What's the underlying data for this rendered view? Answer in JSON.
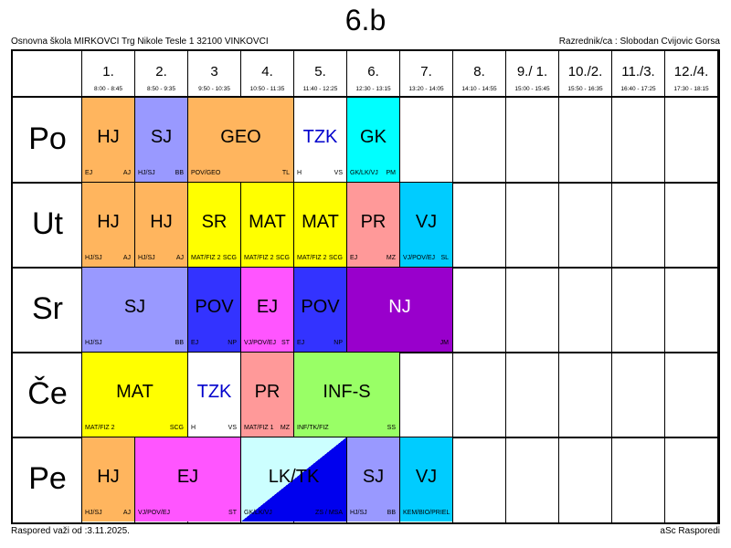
{
  "title": "6.b",
  "school": "Osnovna škola MIRKOVCI Trg Nikole Tesle 1 32100 VINKOVCI",
  "class_teacher": "Razrednik/ca : Slobodan Cvijovic Gorsa",
  "valid_from": "Raspored važi od :3.11.2025.",
  "software": "aSc Rasporedi",
  "periods": [
    {
      "num": "1.",
      "time": "8:00 - 8:45"
    },
    {
      "num": "2.",
      "time": "8:50 - 9:35"
    },
    {
      "num": "3",
      "time": "9:50 - 10:35"
    },
    {
      "num": "4.",
      "time": "10:50 - 11:35"
    },
    {
      "num": "5.",
      "time": "11:40 - 12:25"
    },
    {
      "num": "6.",
      "time": "12:30 - 13:15"
    },
    {
      "num": "7.",
      "time": "13:20 - 14:05"
    },
    {
      "num": "8.",
      "time": "14:10 - 14:55"
    },
    {
      "num": "9./ 1.",
      "time": "15:00 - 15:45"
    },
    {
      "num": "10./2.",
      "time": "15:50 - 16:35"
    },
    {
      "num": "11./3.",
      "time": "16:40 - 17:25"
    },
    {
      "num": "12./4.",
      "time": "17:30 - 18:15"
    }
  ],
  "days": [
    {
      "name": "Po",
      "lessons": [
        {
          "start": 1,
          "span": 1,
          "subject": "HJ",
          "group": "EJ",
          "teacher": "AJ",
          "color": "#FFB55E"
        },
        {
          "start": 2,
          "span": 1,
          "subject": "SJ",
          "group": "HJ/SJ",
          "teacher": "BB",
          "color": "#9999FF"
        },
        {
          "start": 3,
          "span": 2,
          "subject": "GEO",
          "group": "POV/GEO",
          "teacher": "TL",
          "color": "#FFB55E"
        },
        {
          "start": 5,
          "span": 1,
          "subject": "TZK",
          "group": "H",
          "teacher": "VS",
          "color": "#FFFFFF",
          "text_color": "#0000CC"
        },
        {
          "start": 6,
          "span": 1,
          "subject": "GK",
          "group": "GK/LK/VJ",
          "teacher": "PM",
          "color": "#00FFFF"
        }
      ]
    },
    {
      "name": "Ut",
      "lessons": [
        {
          "start": 1,
          "span": 1,
          "subject": "HJ",
          "group": "HJ/SJ",
          "teacher": "AJ",
          "color": "#FFB55E"
        },
        {
          "start": 2,
          "span": 1,
          "subject": "HJ",
          "group": "HJ/SJ",
          "teacher": "AJ",
          "color": "#FFB55E"
        },
        {
          "start": 3,
          "span": 1,
          "subject": "SR",
          "group": "MAT/FIZ 2",
          "teacher": "SCG",
          "color": "#FFFF00"
        },
        {
          "start": 4,
          "span": 1,
          "subject": "MAT",
          "group": "MAT/FIZ 2",
          "teacher": "SCG",
          "color": "#FFFF00"
        },
        {
          "start": 5,
          "span": 1,
          "subject": "MAT",
          "group": "MAT/FIZ 2",
          "teacher": "SCG",
          "color": "#FFFF00"
        },
        {
          "start": 6,
          "span": 1,
          "subject": "PR",
          "group": "EJ",
          "teacher": "MZ",
          "color": "#FF9999"
        },
        {
          "start": 7,
          "span": 1,
          "subject": "VJ",
          "group": "VJ/POV/EJ",
          "teacher": "SL",
          "color": "#00CCFF"
        }
      ]
    },
    {
      "name": "Sr",
      "lessons": [
        {
          "start": 1,
          "span": 2,
          "subject": "SJ",
          "group": "HJ/SJ",
          "teacher": "BB",
          "color": "#9999FF"
        },
        {
          "start": 3,
          "span": 1,
          "subject": "POV",
          "group": "EJ",
          "teacher": "NP",
          "color": "#3333FF"
        },
        {
          "start": 4,
          "span": 1,
          "subject": "EJ",
          "group": "VJ/POV/EJ",
          "teacher": "ST",
          "color": "#FF55FF"
        },
        {
          "start": 5,
          "span": 1,
          "subject": "POV",
          "group": "EJ",
          "teacher": "NP",
          "color": "#3333FF"
        },
        {
          "start": 6,
          "span": 2,
          "subject": "NJ",
          "group": "",
          "teacher": "JM",
          "color": "#9900CC",
          "text_color": "#FFFFFF"
        }
      ]
    },
    {
      "name": "Če",
      "lessons": [
        {
          "start": 1,
          "span": 2,
          "subject": "MAT",
          "group": "MAT/FIZ 2",
          "teacher": "SCG",
          "color": "#FFFF00"
        },
        {
          "start": 3,
          "span": 1,
          "subject": "TZK",
          "group": "H",
          "teacher": "VS",
          "color": "#FFFFFF",
          "text_color": "#0000CC"
        },
        {
          "start": 4,
          "span": 1,
          "subject": "PR",
          "group": "MAT/FIZ 1",
          "teacher": "MZ",
          "color": "#FF9999"
        },
        {
          "start": 5,
          "span": 2,
          "subject": "INF-S",
          "group": "INF/TK/FIZ",
          "teacher": "SS",
          "color": "#99FF66"
        }
      ]
    },
    {
      "name": "Pe",
      "lessons": [
        {
          "start": 1,
          "span": 1,
          "subject": "HJ",
          "group": "HJ/SJ",
          "teacher": "AJ",
          "color": "#FFB55E"
        },
        {
          "start": 2,
          "span": 2,
          "subject": "EJ",
          "group": "VJ/POV/EJ",
          "teacher": "ST",
          "color": "#FF55FF"
        },
        {
          "start": 4,
          "span": 2,
          "subject": "LK/TK",
          "group": "GK/LK/VJ",
          "teacher": "ZS / MSA",
          "color": "#CCFFFF",
          "color2": "#0000EE"
        },
        {
          "start": 6,
          "span": 1,
          "subject": "SJ",
          "group": "HJ/SJ",
          "teacher": "BB",
          "color": "#9999FF"
        },
        {
          "start": 7,
          "span": 1,
          "subject": "VJ",
          "group": "KEM/BIO/PRIEL",
          "teacher": "",
          "color": "#00CCFF"
        }
      ]
    }
  ]
}
